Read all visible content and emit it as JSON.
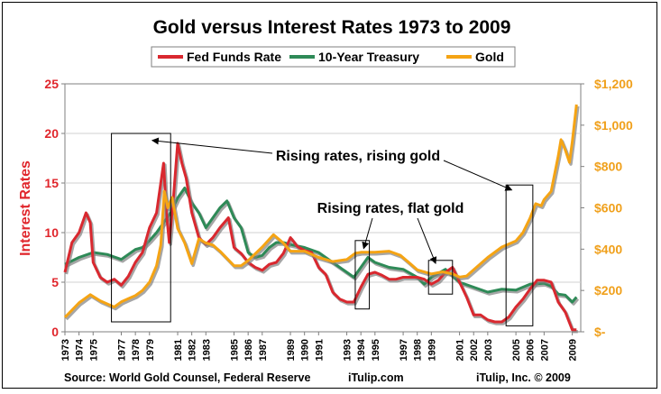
{
  "chart_data": {
    "type": "line",
    "title": "Gold versus Interest Rates 1973 to 2009",
    "ylabel": "Interest Rates",
    "y2label": "",
    "ylim": [
      0,
      25
    ],
    "y2lim": [
      0,
      1200
    ],
    "yticks": [
      "0",
      "5",
      "10",
      "15",
      "20",
      "25"
    ],
    "y2ticks": [
      "$-",
      "$200",
      "$400",
      "$600",
      "$800",
      "$1,000",
      "$1,200"
    ],
    "xticks": [
      "1973",
      "1974",
      "1975",
      "1977",
      "1978",
      "1979",
      "1981",
      "1982",
      "1983",
      "1985",
      "1986",
      "1987",
      "1989",
      "1990",
      "1991",
      "1993",
      "1994",
      "1995",
      "1997",
      "1998",
      "1999",
      "2001",
      "2002",
      "2003",
      "2005",
      "2006",
      "2007",
      "2009"
    ],
    "legend_position": "top-center",
    "series": [
      {
        "name": "Fed Funds Rate",
        "color": "#d9282f",
        "axis": "left",
        "x": [
          1973.0,
          1973.5,
          1974.0,
          1974.5,
          1974.8,
          1975.0,
          1975.5,
          1976.0,
          1976.5,
          1977.0,
          1977.5,
          1978.0,
          1978.5,
          1979.0,
          1979.5,
          1980.0,
          1980.2,
          1980.4,
          1980.7,
          1981.0,
          1981.3,
          1981.6,
          1982.0,
          1982.5,
          1983.0,
          1983.5,
          1984.0,
          1984.6,
          1985.0,
          1985.5,
          1986.0,
          1986.5,
          1987.0,
          1987.5,
          1988.0,
          1988.5,
          1989.0,
          1989.5,
          1990.0,
          1990.5,
          1991.0,
          1991.5,
          1992.0,
          1992.5,
          1993.0,
          1993.5,
          1994.0,
          1994.5,
          1995.0,
          1995.5,
          1996.0,
          1996.5,
          1997.0,
          1997.5,
          1998.0,
          1998.5,
          1999.0,
          1999.5,
          2000.0,
          2000.5,
          2001.0,
          2001.5,
          2002.0,
          2002.5,
          2003.0,
          2003.5,
          2004.0,
          2004.5,
          2005.0,
          2005.5,
          2006.0,
          2006.5,
          2007.0,
          2007.5,
          2008.0,
          2008.5,
          2009.0,
          2009.3
        ],
        "values": [
          6.0,
          9.0,
          10.0,
          12.0,
          11.0,
          7.0,
          5.5,
          5.0,
          5.3,
          4.7,
          5.6,
          7.0,
          8.0,
          10.5,
          12.0,
          17.0,
          12.0,
          9.0,
          13.5,
          19.0,
          17.0,
          15.5,
          12.0,
          9.5,
          8.8,
          9.5,
          10.5,
          11.5,
          8.5,
          7.9,
          7.0,
          6.5,
          6.2,
          6.8,
          7.0,
          7.9,
          9.5,
          8.6,
          8.2,
          8.0,
          6.5,
          5.8,
          4.0,
          3.3,
          3.0,
          3.0,
          4.5,
          5.8,
          6.0,
          5.7,
          5.3,
          5.3,
          5.5,
          5.5,
          5.5,
          5.3,
          4.8,
          5.2,
          6.0,
          6.5,
          5.0,
          3.5,
          1.7,
          1.7,
          1.2,
          1.0,
          1.0,
          1.5,
          2.5,
          3.3,
          4.3,
          5.2,
          5.2,
          5.0,
          3.0,
          2.0,
          0.2,
          0.2
        ]
      },
      {
        "name": "10-Year Treasury",
        "color": "#2e8a57",
        "axis": "left",
        "x": [
          1973.0,
          1974.0,
          1975.0,
          1976.0,
          1977.0,
          1978.0,
          1978.5,
          1979.0,
          1979.5,
          1980.0,
          1980.5,
          1981.0,
          1981.5,
          1982.0,
          1982.5,
          1983.0,
          1983.5,
          1984.0,
          1984.5,
          1985.0,
          1985.5,
          1986.0,
          1986.5,
          1987.0,
          1987.5,
          1988.0,
          1988.5,
          1989.0,
          1990.0,
          1991.0,
          1992.0,
          1993.0,
          1993.5,
          1994.0,
          1994.5,
          1995.0,
          1996.0,
          1997.0,
          1998.0,
          1998.5,
          1999.0,
          2000.0,
          2001.0,
          2002.0,
          2003.0,
          2004.0,
          2005.0,
          2006.0,
          2007.0,
          2007.5,
          2008.0,
          2008.5,
          2009.0,
          2009.3
        ],
        "values": [
          6.8,
          7.5,
          8.0,
          7.8,
          7.3,
          8.3,
          8.5,
          9.2,
          10.0,
          11.0,
          12.0,
          13.5,
          14.5,
          13.0,
          12.0,
          10.5,
          11.5,
          12.5,
          13.2,
          11.5,
          10.5,
          8.0,
          7.5,
          7.7,
          8.5,
          9.0,
          9.0,
          8.8,
          8.5,
          8.0,
          7.0,
          6.0,
          5.5,
          6.5,
          7.5,
          7.0,
          6.5,
          6.3,
          5.5,
          4.8,
          5.5,
          6.3,
          5.0,
          4.5,
          4.0,
          4.3,
          4.2,
          4.8,
          4.9,
          4.6,
          3.8,
          3.7,
          3.0,
          3.5
        ]
      },
      {
        "name": "Gold",
        "color": "#f5a414",
        "axis": "right",
        "x": [
          1973.0,
          1974.0,
          1974.8,
          1975.5,
          1976.5,
          1977.0,
          1977.5,
          1978.0,
          1978.5,
          1979.0,
          1979.5,
          1979.8,
          1980.05,
          1980.3,
          1980.6,
          1981.0,
          1981.5,
          1982.0,
          1982.5,
          1983.0,
          1983.5,
          1984.0,
          1985.0,
          1985.5,
          1986.0,
          1987.0,
          1987.8,
          1988.5,
          1989.0,
          1990.0,
          1991.0,
          1992.0,
          1993.0,
          1993.6,
          1994.0,
          1995.0,
          1996.0,
          1996.8,
          1997.5,
          1998.0,
          1999.0,
          1999.8,
          2000.5,
          2001.0,
          2001.5,
          2002.0,
          2003.0,
          2004.0,
          2005.0,
          2005.5,
          2006.0,
          2006.4,
          2006.8,
          2007.0,
          2007.5,
          2008.0,
          2008.2,
          2008.5,
          2008.8,
          2009.0,
          2009.3
        ],
        "values": [
          70,
          140,
          180,
          150,
          120,
          145,
          160,
          175,
          200,
          240,
          320,
          420,
          680,
          600,
          650,
          500,
          430,
          330,
          450,
          430,
          420,
          390,
          320,
          320,
          345,
          410,
          470,
          430,
          390,
          390,
          360,
          340,
          350,
          380,
          385,
          385,
          390,
          370,
          330,
          300,
          280,
          290,
          280,
          265,
          270,
          300,
          360,
          410,
          440,
          480,
          550,
          620,
          610,
          640,
          680,
          850,
          930,
          880,
          820,
          920,
          1100
        ]
      }
    ],
    "annotations": [
      {
        "text": "Rising rates, rising gold"
      },
      {
        "text": "Rising rates, flat gold"
      }
    ],
    "highlight_boxes": [
      {
        "x_from": 1976.3,
        "x_to": 1980.5,
        "y_from": 1.0,
        "y_to": 20.0
      },
      {
        "x_from": 1993.6,
        "x_to": 1994.6,
        "y_from": 2.3,
        "y_to": 9.2
      },
      {
        "x_from": 1998.8,
        "x_to": 2000.5,
        "y_from": 3.8,
        "y_to": 7.2
      },
      {
        "x_from": 2004.3,
        "x_to": 2006.2,
        "y_from": 0.6,
        "y_to": 14.8
      }
    ]
  },
  "footer": {
    "source": "Source: World Gold Counsel, Federal Reserve",
    "site": "iTulip.com",
    "copyright": "iTulip, Inc. © 2009"
  }
}
